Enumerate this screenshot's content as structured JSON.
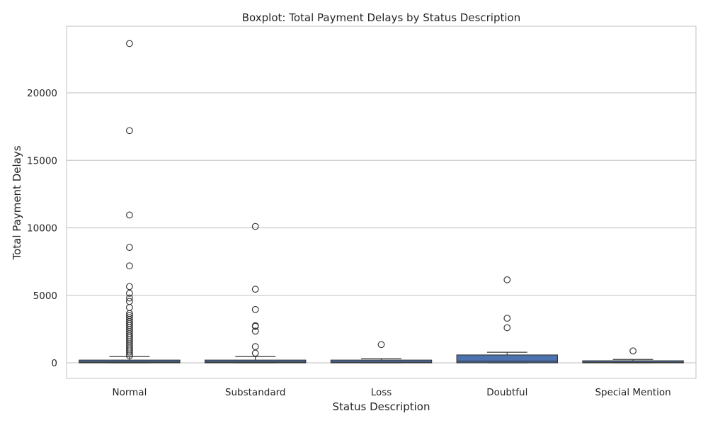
{
  "chart_data": {
    "type": "box",
    "title": "Boxplot: Total Payment Delays by Status Description",
    "xlabel": "Status Description",
    "ylabel": "Total Payment Delays",
    "ylim": [
      -1150,
      25000
    ],
    "yticks": [
      0,
      5000,
      10000,
      15000,
      20000
    ],
    "grid": true,
    "box_color": "#4c72b0",
    "line_color": "#3a3a3a",
    "grid_color": "#cccccc",
    "categories": [
      "Normal",
      "Substandard",
      "Loss",
      "Doubtful",
      "Special Mention"
    ],
    "boxes": [
      {
        "category": "Normal",
        "whisker_low": 0,
        "q1": 0,
        "median": 60,
        "q3": 200,
        "whisker_high": 460,
        "outliers": [
          23650,
          17200,
          10950,
          8550,
          7180,
          5650,
          5150,
          4800,
          4550,
          4100,
          3650,
          3500,
          3350,
          3200,
          3050,
          2900,
          2750,
          2600,
          2450,
          2300,
          2150,
          2000,
          1850,
          1700,
          1550,
          1400,
          1250,
          1100,
          950,
          800,
          650,
          520
        ]
      },
      {
        "category": "Substandard",
        "whisker_low": 0,
        "q1": 0,
        "median": 60,
        "q3": 200,
        "whisker_high": 460,
        "outliers": [
          10100,
          5450,
          3950,
          2750,
          2700,
          2350,
          1200,
          720
        ]
      },
      {
        "category": "Loss",
        "whisker_low": 0,
        "q1": 0,
        "median": 50,
        "q3": 200,
        "whisker_high": 300,
        "outliers": [
          1350
        ]
      },
      {
        "category": "Doubtful",
        "whisker_low": 0,
        "q1": 0,
        "median": 120,
        "q3": 580,
        "whisker_high": 780,
        "outliers": [
          6150,
          3300,
          2600
        ]
      },
      {
        "category": "Special Mention",
        "whisker_low": 0,
        "q1": 0,
        "median": 40,
        "q3": 150,
        "whisker_high": 250,
        "outliers": [
          880
        ]
      }
    ]
  }
}
